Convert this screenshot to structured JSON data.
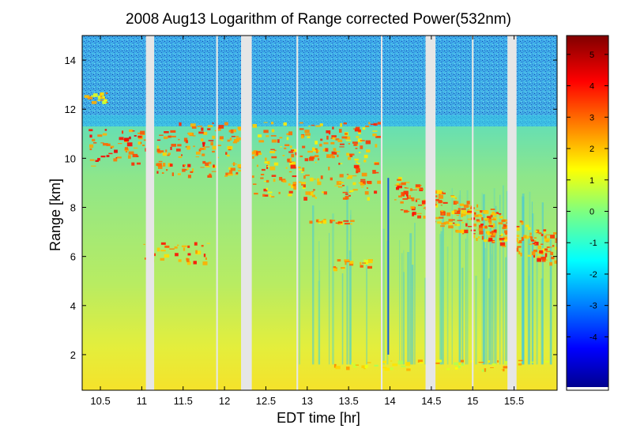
{
  "chart_data": {
    "type": "heatmap",
    "title": "2008 Aug13  Logarithm of Range corrected Power(532nm)",
    "xlabel": "EDT time [hr]",
    "ylabel": "Range [km]",
    "xlim": [
      10.28,
      16.02
    ],
    "ylim": [
      0.55,
      15.0
    ],
    "x_ticks": [
      10.5,
      11,
      11.5,
      12,
      12.5,
      13,
      13.5,
      14,
      14.5,
      15,
      15.5
    ],
    "x_tick_labels": [
      "10.5",
      "11",
      "11.5",
      "12",
      "12.5",
      "13",
      "13.5",
      "14",
      "14.5",
      "15",
      "15.5"
    ],
    "y_ticks": [
      2,
      4,
      6,
      8,
      10,
      12,
      14
    ],
    "y_tick_labels": [
      "2",
      "4",
      "6",
      "8",
      "10",
      "12",
      "14"
    ],
    "colorbar": {
      "range": [
        -5.6,
        5.6
      ],
      "ticks": [
        5,
        4,
        3,
        2,
        1,
        0,
        -1,
        -2,
        -3,
        -4
      ],
      "tick_labels": [
        "5",
        "4",
        "3",
        "2",
        "1",
        "0",
        "-1",
        "-2",
        "-3",
        "-4"
      ],
      "colormap": "jet"
    },
    "data_gaps_hr": [
      [
        11.05,
        11.15
      ],
      [
        11.9,
        11.92
      ],
      [
        12.2,
        12.33
      ],
      [
        12.87,
        12.89
      ],
      [
        13.89,
        13.91
      ],
      [
        14.43,
        14.55
      ],
      [
        14.99,
        15.01
      ],
      [
        15.42,
        15.53
      ]
    ],
    "features": [
      {
        "label": "low cloud patch",
        "t": [
          10.29,
          10.58
        ],
        "range_km": [
          12.3,
          12.7
        ],
        "value": 3.2
      },
      {
        "label": "cirrus band (early)",
        "t": [
          10.35,
          11.05
        ],
        "range_km": [
          9.7,
          11.2
        ],
        "value": 4.5
      },
      {
        "label": "cirrus band (mid)",
        "t": [
          11.15,
          12.2
        ],
        "range_km": [
          9.3,
          11.5
        ],
        "value": 4.3
      },
      {
        "label": "cirrus band (late)",
        "t": [
          12.33,
          13.85
        ],
        "range_km": [
          8.4,
          11.5
        ],
        "value": 4.0
      },
      {
        "label": "mid-level layer",
        "t": [
          11.0,
          11.8
        ],
        "range_km": [
          5.8,
          6.6
        ],
        "value": 4.2
      },
      {
        "label": "thin layer",
        "t": [
          12.96,
          13.55
        ],
        "range_km": [
          7.35,
          7.55
        ],
        "value": 3.8
      },
      {
        "label": "small cloud",
        "t": [
          13.3,
          13.75
        ],
        "range_km": [
          5.5,
          5.9
        ],
        "value": 3.6
      },
      {
        "label": "descending cirrus",
        "t": [
          14.05,
          16.0
        ],
        "range_km": [
          6.0,
          9.0
        ],
        "value": 4.2
      },
      {
        "label": "boundary layer tops",
        "t": [
          13.3,
          15.9
        ],
        "range_km": [
          1.4,
          1.8
        ],
        "value": 3.0
      }
    ]
  }
}
